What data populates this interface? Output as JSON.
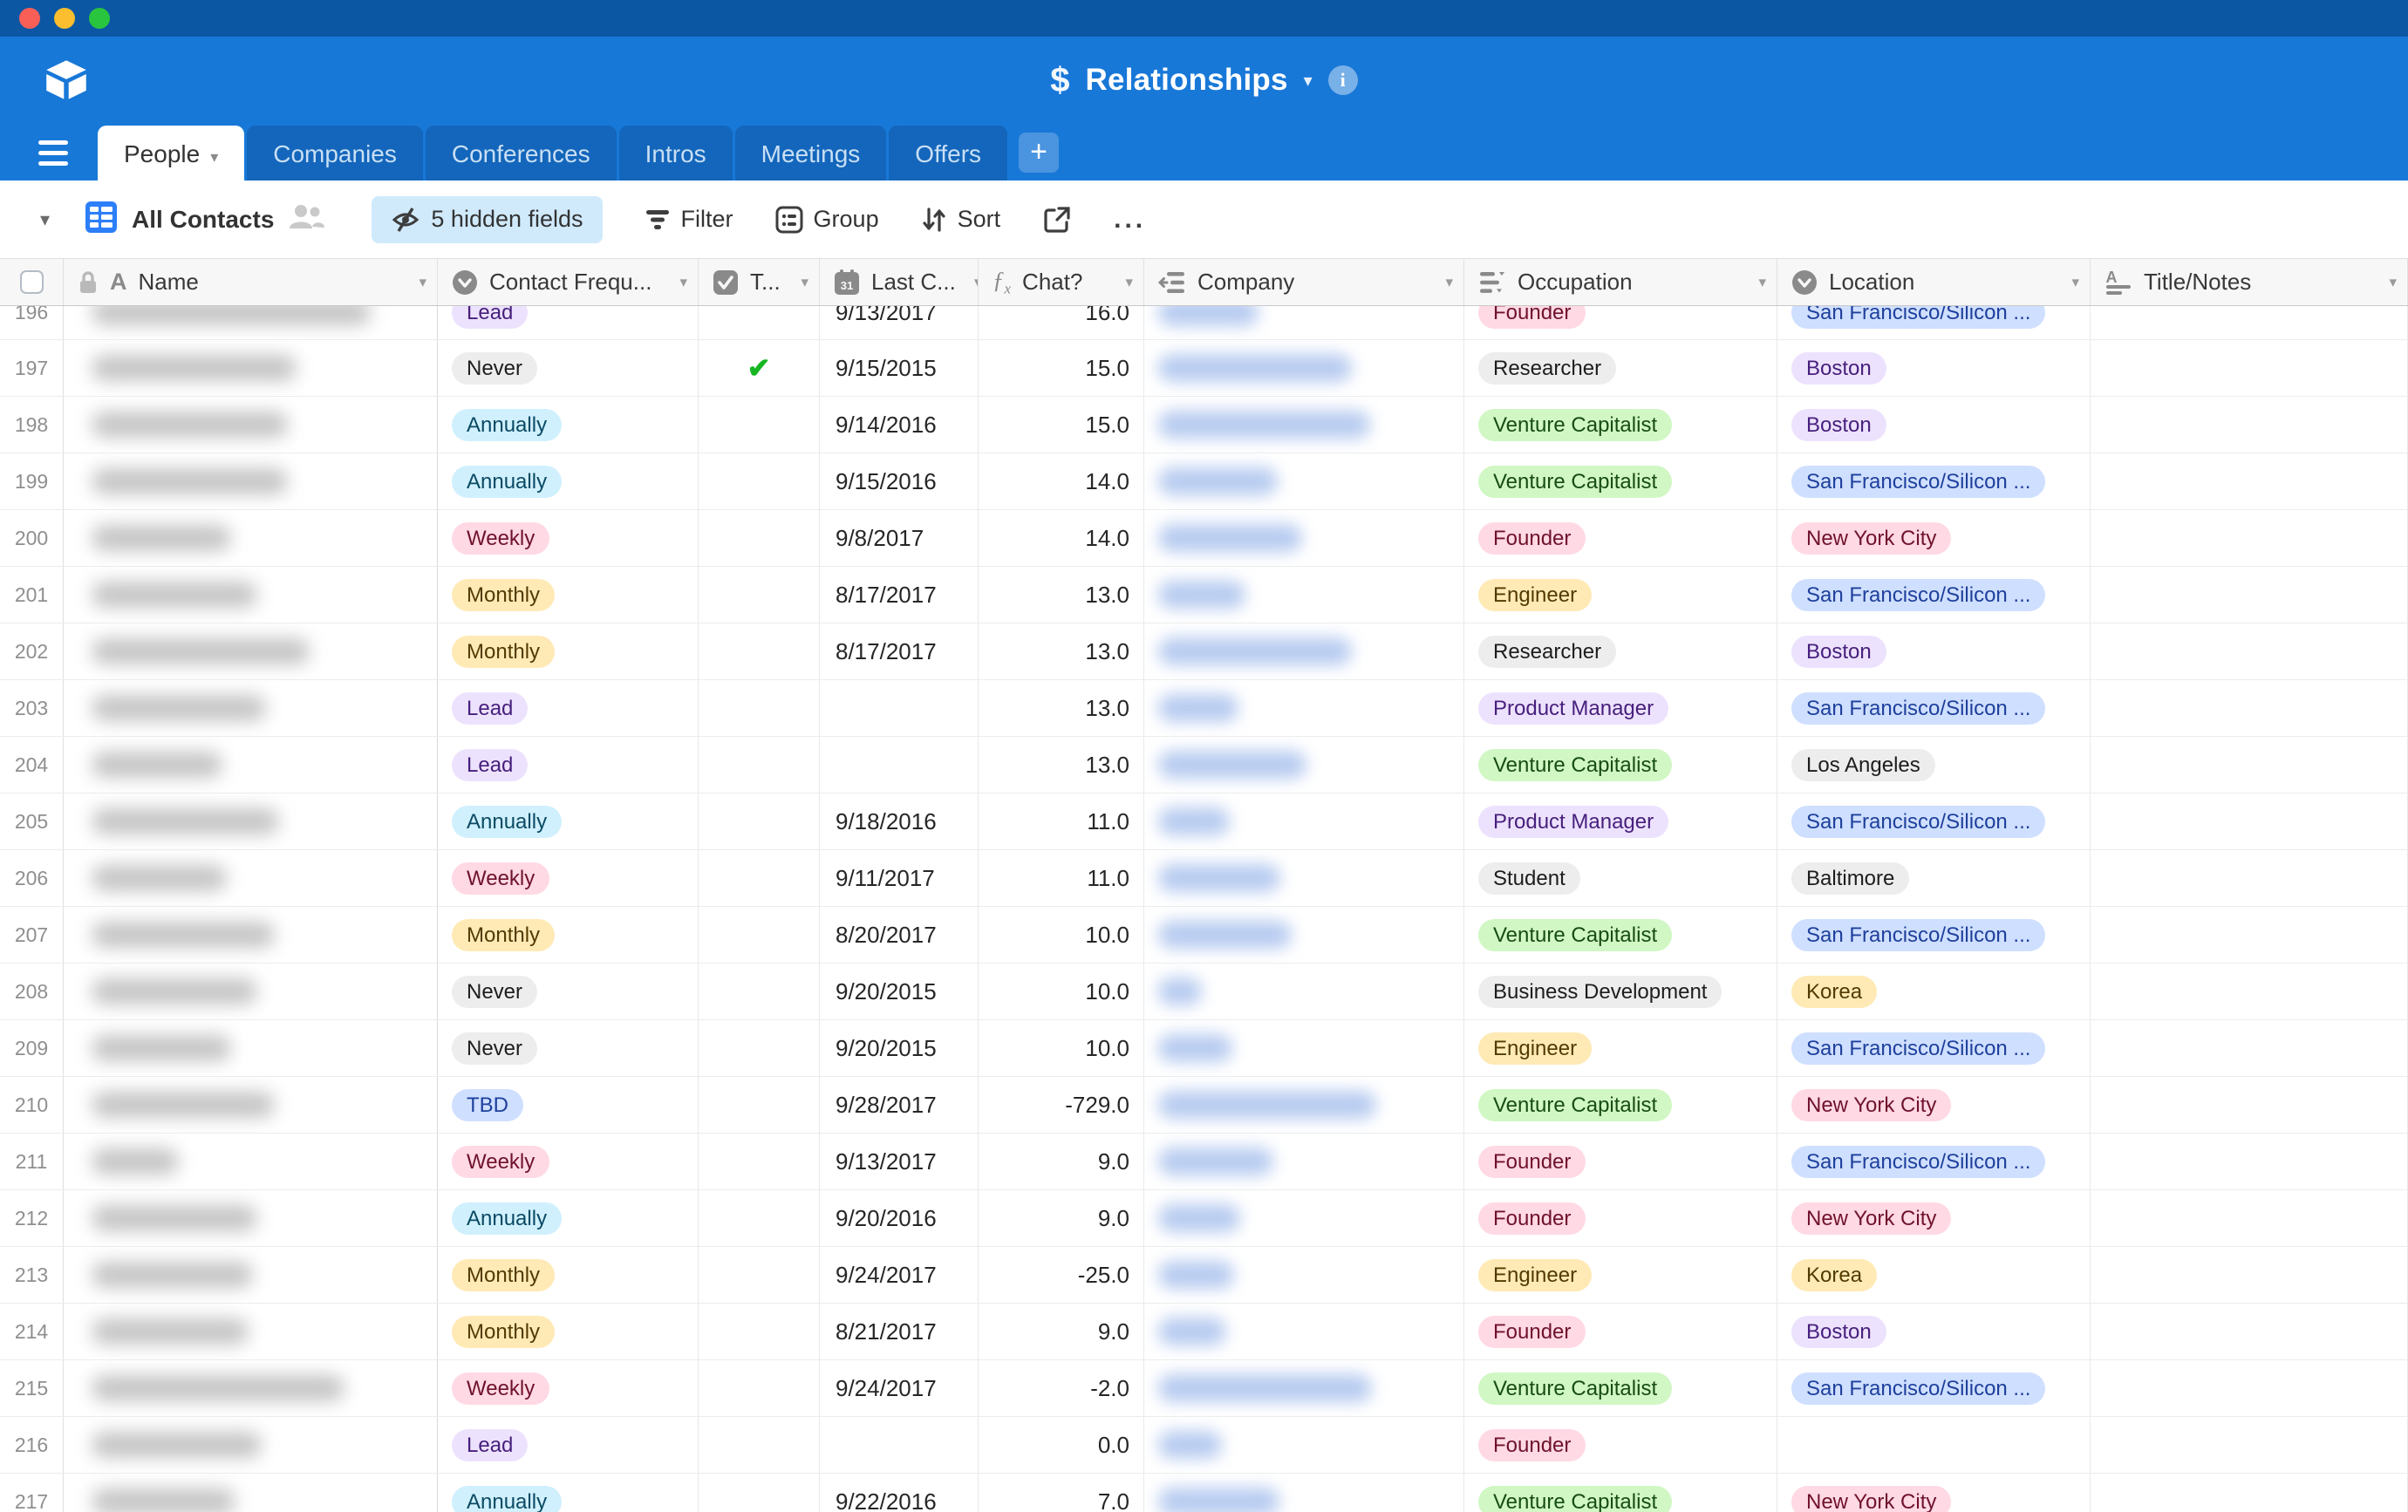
{
  "window": {
    "traffic_lights": [
      "close",
      "minimize",
      "zoom"
    ],
    "base_icon": "$",
    "title": "Relationships",
    "info_icon": "i"
  },
  "tabs": {
    "items": [
      "People",
      "Companies",
      "Conferences",
      "Intros",
      "Meetings",
      "Offers"
    ],
    "active": "People",
    "add_tab_label": "+"
  },
  "toolbar": {
    "view_name": "All Contacts",
    "hidden_fields_label": "5 hidden fields",
    "filter_label": "Filter",
    "group_label": "Group",
    "sort_label": "Sort",
    "more_label": "..."
  },
  "colors": {
    "titlebar": "#0b57a4",
    "header_blue": "#1878d8",
    "inactive_tab": "#1366bb",
    "accent_blue": "#2d7ff9",
    "hidden_fields_bg": "#d0eafc",
    "check_green": "#16b622"
  },
  "table": {
    "columns": [
      {
        "key": "num",
        "label": "",
        "icon": "row-checkbox"
      },
      {
        "key": "name",
        "label": "Name",
        "icon": "single-line-text"
      },
      {
        "key": "freq",
        "label": "Contact Frequ...",
        "icon": "single-select"
      },
      {
        "key": "check",
        "label": "T...",
        "icon": "checkbox-field"
      },
      {
        "key": "date",
        "label": "Last C...",
        "icon": "calendar"
      },
      {
        "key": "chat",
        "label": "Chat?",
        "icon": "formula"
      },
      {
        "key": "company",
        "label": "Company",
        "icon": "linked-record"
      },
      {
        "key": "occ",
        "label": "Occupation",
        "icon": "multiple-select"
      },
      {
        "key": "loc",
        "label": "Location",
        "icon": "single-select"
      },
      {
        "key": "title",
        "label": "Title/Notes",
        "icon": "long-text"
      }
    ],
    "chip_colors": {
      "purple": {
        "bg": "#EDE2FE",
        "fg": "#47207c"
      },
      "gray": {
        "bg": "#EDEDED",
        "fg": "#1d1d1d"
      },
      "cyan": {
        "bg": "#D0F0FD",
        "fg": "#0a4a63"
      },
      "pink": {
        "bg": "#FFD9E4",
        "fg": "#6f122c"
      },
      "yellow": {
        "bg": "#FFEAB6",
        "fg": "#523a00"
      },
      "blue": {
        "bg": "#CFDFFF",
        "fg": "#1e409c"
      },
      "green": {
        "bg": "#D1F7C4",
        "fg": "#174d12"
      }
    },
    "rows": [
      {
        "num": 196,
        "freq": {
          "label": "Lead",
          "color": "purple"
        },
        "checked": false,
        "date": "9/13/2017",
        "chat": "16.0",
        "occ": {
          "label": "Founder",
          "color": "pink"
        },
        "loc": {
          "label": "San Francisco/Silicon ...",
          "color": "blue"
        },
        "name_w": 320,
        "company_w": 115
      },
      {
        "num": 197,
        "freq": {
          "label": "Never",
          "color": "gray"
        },
        "checked": true,
        "date": "9/15/2015",
        "chat": "15.0",
        "occ": {
          "label": "Researcher",
          "color": "gray"
        },
        "loc": {
          "label": "Boston",
          "color": "purple"
        },
        "name_w": 235,
        "company_w": 222
      },
      {
        "num": 198,
        "freq": {
          "label": "Annually",
          "color": "cyan"
        },
        "checked": false,
        "date": "9/14/2016",
        "chat": "15.0",
        "occ": {
          "label": "Venture Capitalist",
          "color": "green"
        },
        "loc": {
          "label": "Boston",
          "color": "purple"
        },
        "name_w": 225,
        "company_w": 243
      },
      {
        "num": 199,
        "freq": {
          "label": "Annually",
          "color": "cyan"
        },
        "checked": false,
        "date": "9/15/2016",
        "chat": "14.0",
        "occ": {
          "label": "Venture Capitalist",
          "color": "green"
        },
        "loc": {
          "label": "San Francisco/Silicon ...",
          "color": "blue"
        },
        "name_w": 225,
        "company_w": 137
      },
      {
        "num": 200,
        "freq": {
          "label": "Weekly",
          "color": "pink"
        },
        "checked": false,
        "date": "9/8/2017",
        "chat": "14.0",
        "occ": {
          "label": "Founder",
          "color": "pink"
        },
        "loc": {
          "label": "New York City",
          "color": "pink"
        },
        "name_w": 160,
        "company_w": 165
      },
      {
        "num": 201,
        "freq": {
          "label": "Monthly",
          "color": "yellow"
        },
        "checked": false,
        "date": "8/17/2017",
        "chat": "13.0",
        "occ": {
          "label": "Engineer",
          "color": "yellow"
        },
        "loc": {
          "label": "San Francisco/Silicon ...",
          "color": "blue"
        },
        "name_w": 190,
        "company_w": 100
      },
      {
        "num": 202,
        "freq": {
          "label": "Monthly",
          "color": "yellow"
        },
        "checked": false,
        "date": "8/17/2017",
        "chat": "13.0",
        "occ": {
          "label": "Researcher",
          "color": "gray"
        },
        "loc": {
          "label": "Boston",
          "color": "purple"
        },
        "name_w": 250,
        "company_w": 222
      },
      {
        "num": 203,
        "freq": {
          "label": "Lead",
          "color": "purple"
        },
        "checked": false,
        "date": "",
        "chat": "13.0",
        "occ": {
          "label": "Product Manager",
          "color": "purple"
        },
        "loc": {
          "label": "San Francisco/Silicon ...",
          "color": "blue"
        },
        "name_w": 200,
        "company_w": 92
      },
      {
        "num": 204,
        "freq": {
          "label": "Lead",
          "color": "purple"
        },
        "checked": false,
        "date": "",
        "chat": "13.0",
        "occ": {
          "label": "Venture Capitalist",
          "color": "green"
        },
        "loc": {
          "label": "Los Angeles",
          "color": "gray"
        },
        "name_w": 150,
        "company_w": 170
      },
      {
        "num": 205,
        "freq": {
          "label": "Annually",
          "color": "cyan"
        },
        "checked": false,
        "date": "9/18/2016",
        "chat": "11.0",
        "occ": {
          "label": "Product Manager",
          "color": "purple"
        },
        "loc": {
          "label": "San Francisco/Silicon ...",
          "color": "blue"
        },
        "name_w": 215,
        "company_w": 82
      },
      {
        "num": 206,
        "freq": {
          "label": "Weekly",
          "color": "pink"
        },
        "checked": false,
        "date": "9/11/2017",
        "chat": "11.0",
        "occ": {
          "label": "Student",
          "color": "gray"
        },
        "loc": {
          "label": "Baltimore",
          "color": "gray"
        },
        "name_w": 155,
        "company_w": 140
      },
      {
        "num": 207,
        "freq": {
          "label": "Monthly",
          "color": "yellow"
        },
        "checked": false,
        "date": "8/20/2017",
        "chat": "10.0",
        "occ": {
          "label": "Venture Capitalist",
          "color": "green"
        },
        "loc": {
          "label": "San Francisco/Silicon ...",
          "color": "blue"
        },
        "name_w": 210,
        "company_w": 153
      },
      {
        "num": 208,
        "freq": {
          "label": "Never",
          "color": "gray"
        },
        "checked": false,
        "date": "9/20/2015",
        "chat": "10.0",
        "occ": {
          "label": "Business Development",
          "color": "gray"
        },
        "loc": {
          "label": "Korea",
          "color": "yellow"
        },
        "name_w": 190,
        "company_w": 50
      },
      {
        "num": 209,
        "freq": {
          "label": "Never",
          "color": "gray"
        },
        "checked": false,
        "date": "9/20/2015",
        "chat": "10.0",
        "occ": {
          "label": "Engineer",
          "color": "yellow"
        },
        "loc": {
          "label": "San Francisco/Silicon ...",
          "color": "blue"
        },
        "name_w": 160,
        "company_w": 85
      },
      {
        "num": 210,
        "freq": {
          "label": "TBD",
          "color": "blue"
        },
        "checked": false,
        "date": "9/28/2017",
        "chat": "-729.0",
        "occ": {
          "label": "Venture Capitalist",
          "color": "green"
        },
        "loc": {
          "label": "New York City",
          "color": "pink"
        },
        "name_w": 210,
        "company_w": 250
      },
      {
        "num": 211,
        "freq": {
          "label": "Weekly",
          "color": "pink"
        },
        "checked": false,
        "date": "9/13/2017",
        "chat": "9.0",
        "occ": {
          "label": "Founder",
          "color": "pink"
        },
        "loc": {
          "label": "San Francisco/Silicon ...",
          "color": "blue"
        },
        "name_w": 100,
        "company_w": 132
      },
      {
        "num": 212,
        "freq": {
          "label": "Annually",
          "color": "cyan"
        },
        "checked": false,
        "date": "9/20/2016",
        "chat": "9.0",
        "occ": {
          "label": "Founder",
          "color": "pink"
        },
        "loc": {
          "label": "New York City",
          "color": "pink"
        },
        "name_w": 190,
        "company_w": 94
      },
      {
        "num": 213,
        "freq": {
          "label": "Monthly",
          "color": "yellow"
        },
        "checked": false,
        "date": "9/24/2017",
        "chat": "-25.0",
        "occ": {
          "label": "Engineer",
          "color": "yellow"
        },
        "loc": {
          "label": "Korea",
          "color": "yellow"
        },
        "name_w": 185,
        "company_w": 87
      },
      {
        "num": 214,
        "freq": {
          "label": "Monthly",
          "color": "yellow"
        },
        "checked": false,
        "date": "8/21/2017",
        "chat": "9.0",
        "occ": {
          "label": "Founder",
          "color": "pink"
        },
        "loc": {
          "label": "Boston",
          "color": "purple"
        },
        "name_w": 180,
        "company_w": 78
      },
      {
        "num": 215,
        "freq": {
          "label": "Weekly",
          "color": "pink"
        },
        "checked": false,
        "date": "9/24/2017",
        "chat": "-2.0",
        "occ": {
          "label": "Venture Capitalist",
          "color": "green"
        },
        "loc": {
          "label": "San Francisco/Silicon ...",
          "color": "blue"
        },
        "name_w": 290,
        "company_w": 245
      },
      {
        "num": 216,
        "freq": {
          "label": "Lead",
          "color": "purple"
        },
        "checked": false,
        "date": "",
        "chat": "0.0",
        "occ": {
          "label": "Founder",
          "color": "pink"
        },
        "loc": null,
        "name_w": 195,
        "company_w": 73
      },
      {
        "num": 217,
        "freq": {
          "label": "Annually",
          "color": "cyan"
        },
        "checked": false,
        "date": "9/22/2016",
        "chat": "7.0",
        "occ": {
          "label": "Venture Capitalist",
          "color": "green"
        },
        "loc": {
          "label": "New York City",
          "color": "pink"
        },
        "name_w": 165,
        "company_w": 139
      }
    ]
  }
}
